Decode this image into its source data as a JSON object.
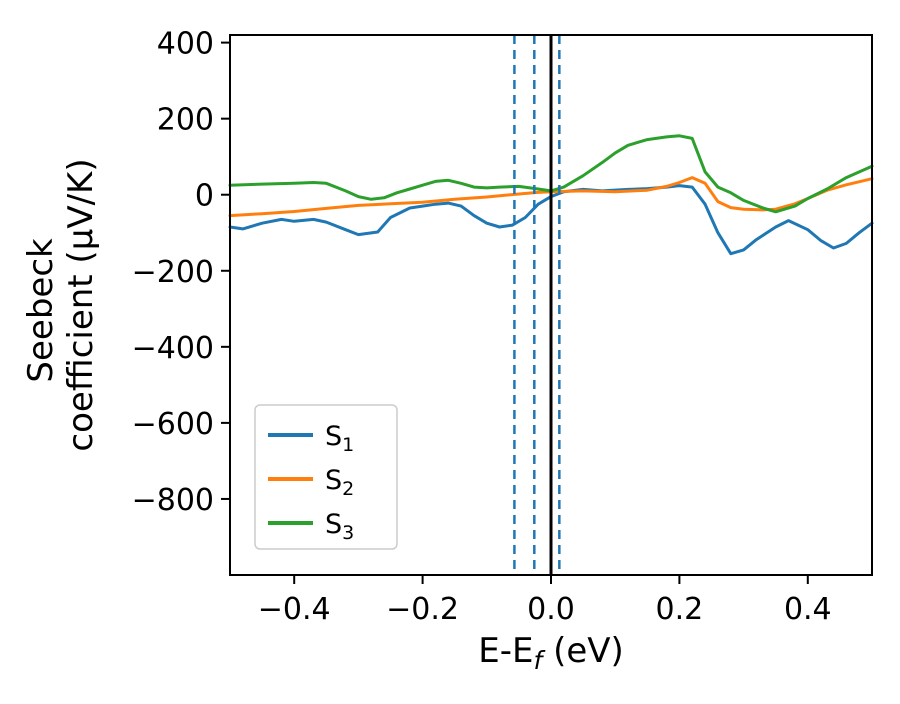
{
  "chart_data": {
    "type": "line",
    "title": "",
    "xlabel_parts": {
      "main": "E-E",
      "sub": "f",
      "unit": " (eV)"
    },
    "ylabel_lines": [
      "Seebeck",
      "coefficient  (μV/K)"
    ],
    "xlim": [
      -0.5,
      0.5
    ],
    "ylim": [
      -1000,
      420
    ],
    "x_ticks": [
      -0.4,
      -0.2,
      0.0,
      0.2,
      0.4
    ],
    "y_ticks": [
      400,
      200,
      0,
      -200,
      -400,
      -600,
      -800
    ],
    "grid": false,
    "legend_position": "lower left",
    "axis_color": "#000000",
    "series": [
      {
        "label_base": "S",
        "label_sub": "1",
        "color": "#1f77b4",
        "x": [
          -0.5,
          -0.48,
          -0.45,
          -0.42,
          -0.4,
          -0.37,
          -0.35,
          -0.32,
          -0.3,
          -0.27,
          -0.25,
          -0.22,
          -0.2,
          -0.18,
          -0.16,
          -0.14,
          -0.12,
          -0.1,
          -0.08,
          -0.06,
          -0.04,
          -0.02,
          0.0,
          0.02,
          0.05,
          0.08,
          0.12,
          0.15,
          0.18,
          0.2,
          0.22,
          0.24,
          0.26,
          0.28,
          0.3,
          0.32,
          0.35,
          0.37,
          0.4,
          0.42,
          0.44,
          0.46,
          0.48,
          0.5
        ],
        "y": [
          -85,
          -90,
          -75,
          -65,
          -70,
          -65,
          -72,
          -92,
          -105,
          -98,
          -60,
          -35,
          -30,
          -25,
          -22,
          -30,
          -55,
          -75,
          -85,
          -80,
          -60,
          -25,
          -5,
          8,
          14,
          10,
          14,
          16,
          20,
          24,
          20,
          -25,
          -100,
          -155,
          -145,
          -118,
          -85,
          -68,
          -92,
          -120,
          -140,
          -128,
          -100,
          -75
        ]
      },
      {
        "label_base": "S",
        "label_sub": "2",
        "color": "#ff7f0e",
        "x": [
          -0.5,
          -0.45,
          -0.4,
          -0.35,
          -0.3,
          -0.25,
          -0.2,
          -0.15,
          -0.1,
          -0.05,
          -0.02,
          0.0,
          0.05,
          0.1,
          0.15,
          0.18,
          0.2,
          0.22,
          0.24,
          0.26,
          0.28,
          0.3,
          0.33,
          0.35,
          0.38,
          0.4,
          0.43,
          0.46,
          0.5
        ],
        "y": [
          -55,
          -50,
          -44,
          -36,
          -28,
          -24,
          -20,
          -12,
          -6,
          2,
          6,
          8,
          10,
          8,
          12,
          22,
          32,
          45,
          30,
          -18,
          -34,
          -38,
          -40,
          -38,
          -24,
          -10,
          12,
          26,
          42
        ]
      },
      {
        "label_base": "S",
        "label_sub": "3",
        "color": "#2ca02c",
        "x": [
          -0.5,
          -0.45,
          -0.4,
          -0.37,
          -0.35,
          -0.32,
          -0.3,
          -0.28,
          -0.26,
          -0.24,
          -0.22,
          -0.2,
          -0.18,
          -0.16,
          -0.14,
          -0.12,
          -0.1,
          -0.08,
          -0.05,
          -0.02,
          0.0,
          0.02,
          0.05,
          0.08,
          0.1,
          0.12,
          0.15,
          0.18,
          0.2,
          0.22,
          0.24,
          0.26,
          0.28,
          0.3,
          0.33,
          0.35,
          0.38,
          0.4,
          0.43,
          0.46,
          0.5
        ],
        "y": [
          25,
          28,
          30,
          32,
          30,
          10,
          -5,
          -12,
          -8,
          5,
          15,
          25,
          35,
          38,
          30,
          20,
          18,
          20,
          22,
          15,
          10,
          20,
          50,
          85,
          110,
          130,
          145,
          152,
          155,
          148,
          60,
          20,
          5,
          -15,
          -35,
          -45,
          -30,
          -10,
          15,
          45,
          75
        ]
      }
    ],
    "vlines": [
      {
        "x": -0.057,
        "style": "dashed",
        "color": "#1f77b4"
      },
      {
        "x": -0.026,
        "style": "dashed",
        "color": "#1f77b4"
      },
      {
        "x": 0.0,
        "style": "solid",
        "color": "#000000"
      },
      {
        "x": 0.013,
        "style": "dashed",
        "color": "#1f77b4"
      }
    ]
  }
}
